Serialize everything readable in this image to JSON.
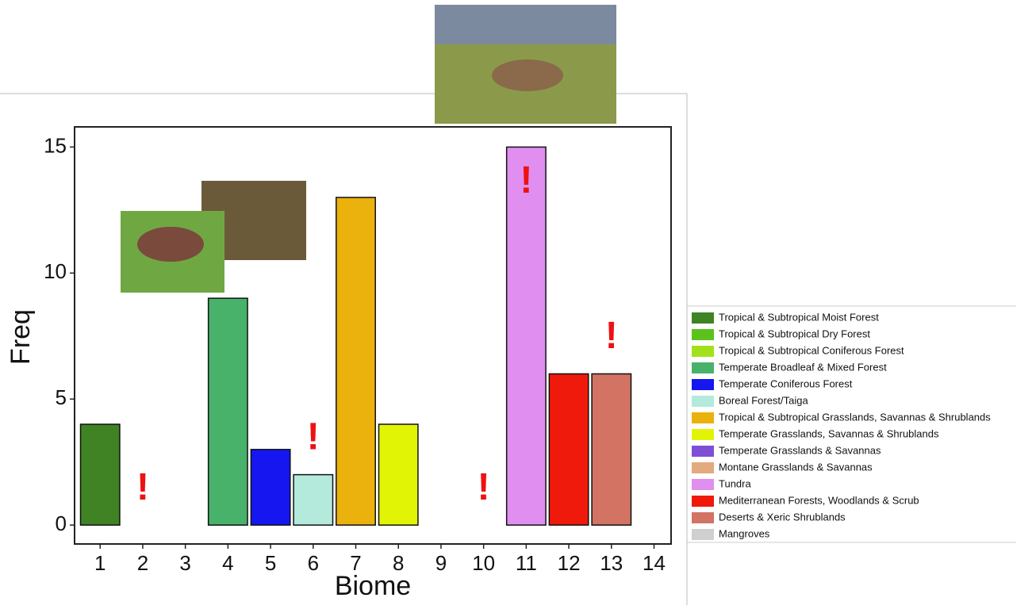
{
  "chart_data": {
    "type": "bar",
    "x_label": "Biome",
    "y_label": "Freq",
    "categories": [
      "1",
      "2",
      "3",
      "4",
      "5",
      "6",
      "7",
      "8",
      "9",
      "10",
      "11",
      "12",
      "13",
      "14"
    ],
    "values": [
      4,
      0,
      0,
      9,
      3,
      2,
      13,
      4,
      0,
      0,
      15,
      6,
      6,
      0
    ],
    "biomes": [
      {
        "name": "Tropical & Subtropical Moist Forest",
        "color": "#3f8325"
      },
      {
        "name": "Tropical & Subtropical Dry Forest",
        "color": "#5cc21b"
      },
      {
        "name": "Tropical & Subtropical Coniferous Forest",
        "color": "#a3e21a"
      },
      {
        "name": "Temperate Broadleaf & Mixed Forest",
        "color": "#48b26b"
      },
      {
        "name": "Temperate Coniferous Forest",
        "color": "#1616f0"
      },
      {
        "name": "Boreal Forest/Taiga",
        "color": "#b3eadb"
      },
      {
        "name": "Tropical & Subtropical Grasslands, Savannas & Shrublands",
        "color": "#ebb10d"
      },
      {
        "name": "Temperate Grasslands, Savannas & Shrublands",
        "color": "#e2f406"
      },
      {
        "name": "Temperate Grasslands & Savannas",
        "color": "#7e4fd6"
      },
      {
        "name": "Montane Grasslands & Savannas",
        "color": "#e3a97f"
      },
      {
        "name": "Tundra",
        "color": "#e08ef0"
      },
      {
        "name": "Mediterranean Forests, Woodlands & Scrub",
        "color": "#ef1a0c"
      },
      {
        "name": "Deserts & Xeric Shrublands",
        "color": "#d27363"
      },
      {
        "name": "Mangroves",
        "color": "#cfcfcf"
      }
    ],
    "annotations": [
      {
        "category": "2",
        "text": "!"
      },
      {
        "category": "6",
        "text": "!"
      },
      {
        "category": "10",
        "text": "!"
      },
      {
        "category": "11",
        "text": "!"
      },
      {
        "category": "13",
        "text": "!"
      }
    ],
    "ylim": [
      -0.75,
      15.8
    ],
    "yticks": [
      0,
      5,
      10,
      15
    ],
    "grid": false
  }
}
